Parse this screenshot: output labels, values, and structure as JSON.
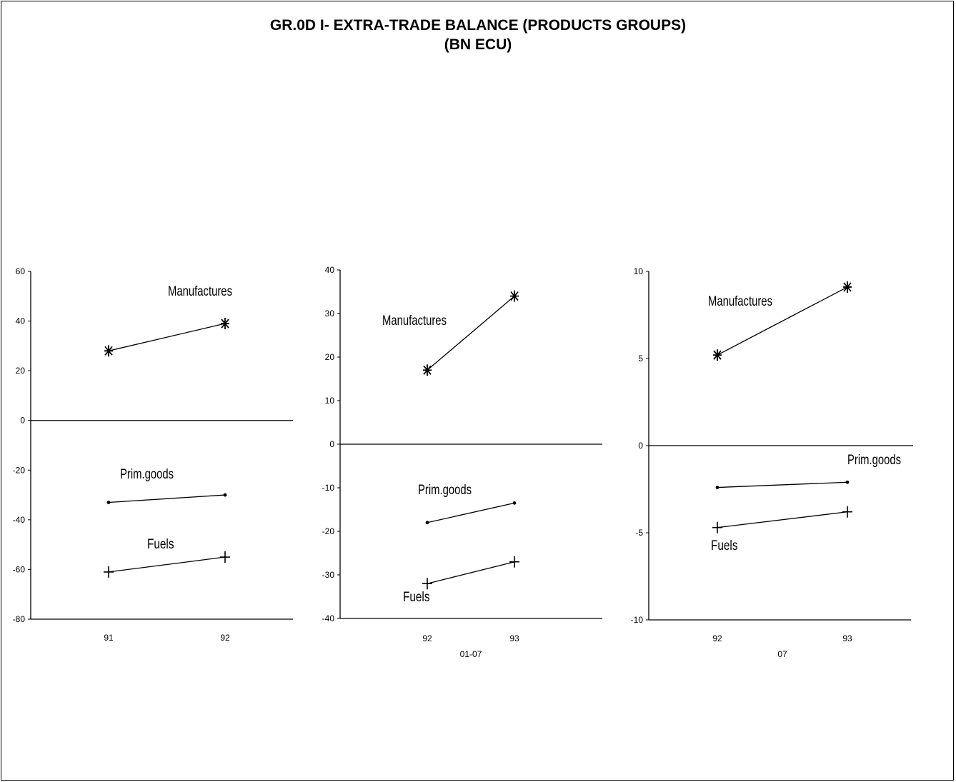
{
  "title": "GR.0D I- EXTRA-TRADE BALANCE (PRODUCTS GROUPS)",
  "subtitle": "(BN ECU)",
  "chart_data": [
    {
      "type": "line",
      "categories": [
        "91",
        "92"
      ],
      "xlabel": "",
      "ylim": [
        -80,
        60
      ],
      "yticks": [
        "60",
        "40",
        "20",
        "0",
        "-20",
        "-40",
        "-60",
        "-80"
      ],
      "series": [
        {
          "name": "Manufactures",
          "marker": "asterisk",
          "values": [
            28,
            39
          ]
        },
        {
          "name": "Prim.goods",
          "marker": "dot",
          "values": [
            -33,
            -30
          ]
        },
        {
          "name": "Fuels",
          "marker": "plus",
          "values": [
            -61,
            -55
          ]
        }
      ]
    },
    {
      "type": "line",
      "categories": [
        "92",
        "93"
      ],
      "xlabel": "01-07",
      "ylim": [
        -40,
        40
      ],
      "yticks": [
        "40",
        "30",
        "20",
        "10",
        "0",
        "-10",
        "-20",
        "-30",
        "-40"
      ],
      "series": [
        {
          "name": "Manufactures",
          "marker": "asterisk",
          "values": [
            17,
            34
          ]
        },
        {
          "name": "Prim.goods",
          "marker": "dot",
          "values": [
            -18,
            -13.5
          ]
        },
        {
          "name": "Fuels",
          "marker": "plus",
          "values": [
            -32,
            -27
          ]
        }
      ]
    },
    {
      "type": "line",
      "categories": [
        "92",
        "93"
      ],
      "xlabel": "07",
      "ylim": [
        -10,
        10
      ],
      "yticks": [
        "10",
        "5",
        "0",
        "-5",
        "-10"
      ],
      "series": [
        {
          "name": "Manufactures",
          "marker": "asterisk",
          "values": [
            5.2,
            9.1
          ]
        },
        {
          "name": "Prim.goods",
          "marker": "dot",
          "values": [
            -2.4,
            -2.1
          ]
        },
        {
          "name": "Fuels",
          "marker": "plus",
          "values": [
            -4.7,
            -3.8
          ]
        }
      ]
    }
  ]
}
